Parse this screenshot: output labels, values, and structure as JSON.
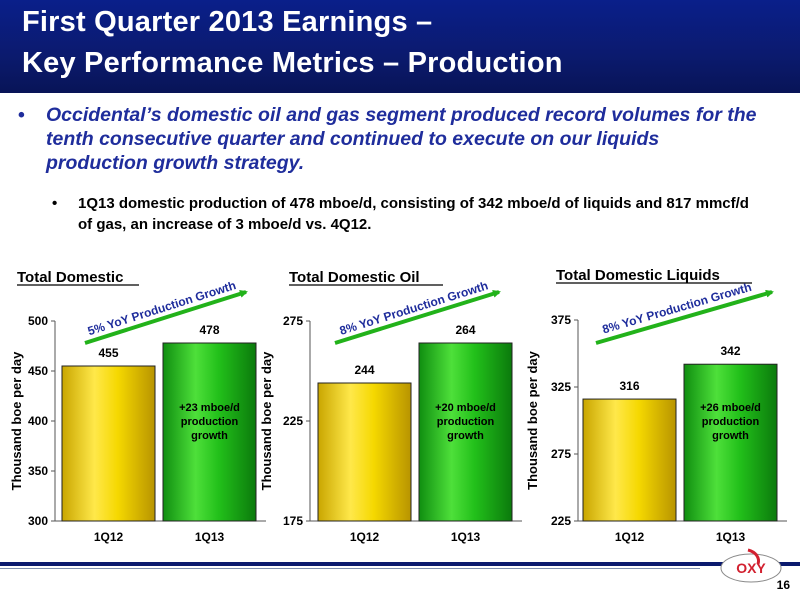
{
  "header": {
    "title_line1": "First Quarter 2013 Earnings –",
    "title_line2": "Key Performance Metrics – Production"
  },
  "bullets": {
    "main_marker": "•",
    "main": "Occidental’s domestic oil and gas segment produced record volumes for the tenth consecutive quarter and continued to execute on our liquids production growth strategy.",
    "sub_marker": "•",
    "sub": "1Q13 domestic production of 478 mboe/d, consisting of 342 mboe/d of liquids and 817 mmcf/d of gas, an increase of 3 mboe/d vs. 4Q12."
  },
  "footer": {
    "page_number": "16",
    "logo_text": "OXY"
  },
  "colors": {
    "header_bg": "#0b1a6e",
    "title_text": "#ffffff",
    "main_bullet": "#1f2d9c",
    "bar_1q12": "#f5d800",
    "bar_1q13": "#22c01a",
    "arrow": "#22b21a",
    "logo_red": "#d2202f"
  },
  "chart_data": [
    {
      "type": "bar",
      "title": "Total Domestic",
      "ylabel": "Thousand boe per day",
      "categories": [
        "1Q12",
        "1Q13"
      ],
      "values": [
        455,
        478
      ],
      "value_labels": [
        "455",
        "478"
      ],
      "ylim": [
        300,
        500
      ],
      "yticks": [
        300,
        350,
        400,
        450,
        500
      ],
      "growth_label": "5% YoY Production Growth",
      "bar_annotation": "+23 mboe/d production growth"
    },
    {
      "type": "bar",
      "title": "Total Domestic Oil",
      "ylabel": "Thousand boe per day",
      "categories": [
        "1Q12",
        "1Q13"
      ],
      "values": [
        244,
        264
      ],
      "value_labels": [
        "244",
        "264"
      ],
      "ylim": [
        175,
        275
      ],
      "yticks": [
        175,
        225,
        275
      ],
      "growth_label": "8% YoY Production Growth",
      "bar_annotation": "+20 mboe/d production growth"
    },
    {
      "type": "bar",
      "title": "Total Domestic Liquids",
      "ylabel": "Thousand boe per day",
      "categories": [
        "1Q12",
        "1Q13"
      ],
      "values": [
        316,
        342
      ],
      "value_labels": [
        "316",
        "342"
      ],
      "ylim": [
        225,
        375
      ],
      "yticks": [
        225,
        275,
        325,
        375
      ],
      "growth_label": "8% YoY Production Growth",
      "bar_annotation": "+26 mboe/d production growth"
    }
  ]
}
